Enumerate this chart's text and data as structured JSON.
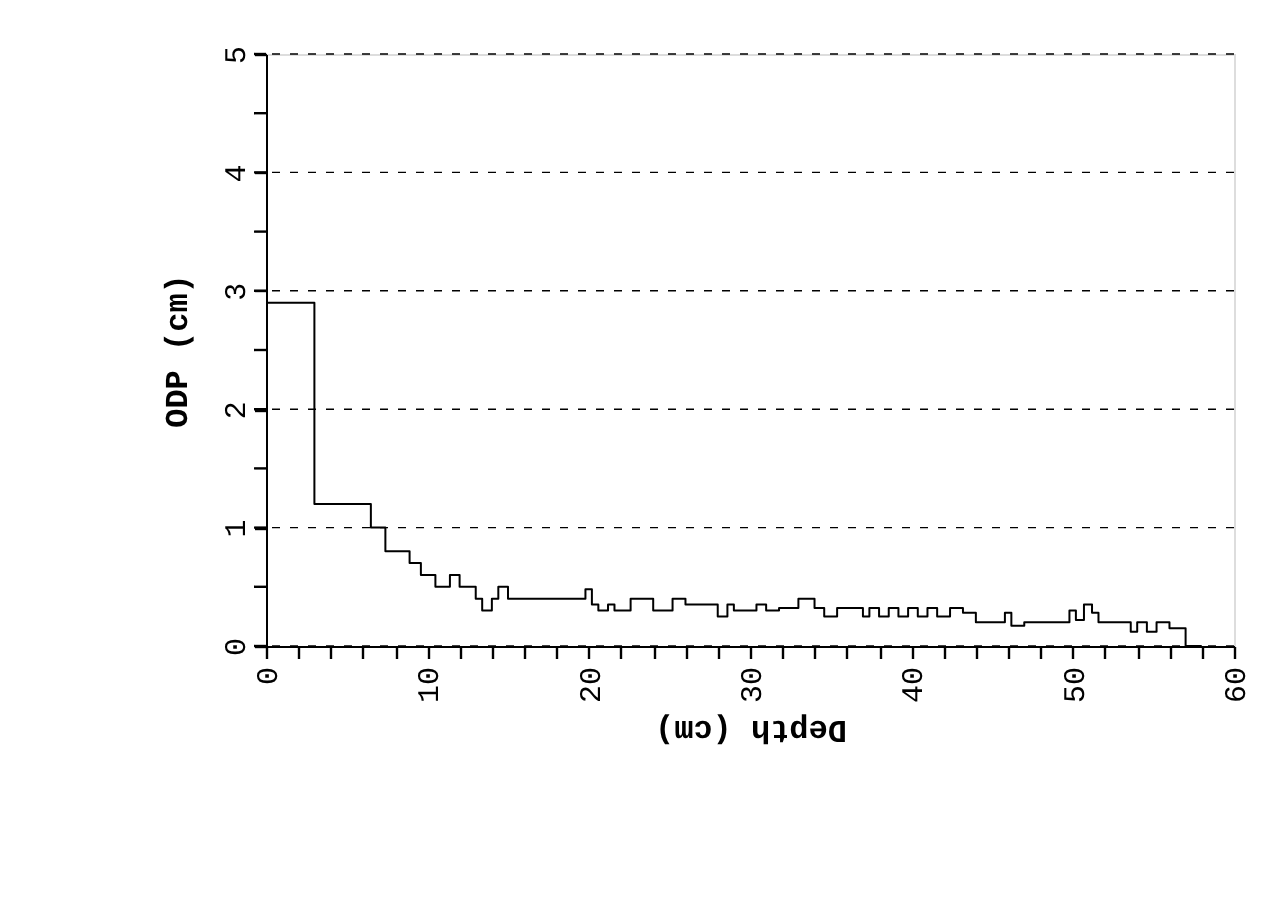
{
  "chart_data": {
    "type": "step",
    "xlabel": "Depth (cm)",
    "ylabel": "ODP (cm)",
    "x": [
      0,
      3,
      6.5,
      7.4,
      8.9,
      9.6,
      10.5,
      11.4,
      12,
      13,
      13.4,
      14,
      14.4,
      15,
      19.8,
      20.2,
      20.6,
      21.2,
      21.6,
      22.6,
      24,
      25.2,
      26,
      27,
      28,
      28.6,
      29,
      30.4,
      31,
      31.8,
      33,
      34,
      34.6,
      35.4,
      37,
      37.4,
      38,
      38.6,
      39.2,
      39.8,
      40.4,
      41,
      41.6,
      42.4,
      43.2,
      44,
      45.8,
      46.2,
      47,
      49.8,
      50.2,
      50.7,
      51.2,
      51.6,
      52,
      53.6,
      54,
      54.6,
      55.2,
      56,
      57,
      58
    ],
    "values": [
      2.9,
      1.2,
      1.0,
      0.8,
      0.7,
      0.6,
      0.5,
      0.6,
      0.5,
      0.4,
      0.3,
      0.4,
      0.5,
      0.4,
      0.48,
      0.35,
      0.3,
      0.35,
      0.3,
      0.4,
      0.3,
      0.4,
      0.35,
      0.35,
      0.25,
      0.35,
      0.3,
      0.35,
      0.3,
      0.32,
      0.4,
      0.32,
      0.25,
      0.32,
      0.25,
      0.32,
      0.25,
      0.32,
      0.25,
      0.32,
      0.25,
      0.32,
      0.25,
      0.32,
      0.28,
      0.2,
      0.28,
      0.17,
      0.2,
      0.3,
      0.22,
      0.35,
      0.28,
      0.2,
      0.2,
      0.12,
      0.2,
      0.12,
      0.2,
      0.15,
      0,
      0
    ],
    "color": "#000000",
    "xlim": [
      0,
      60
    ],
    "ylim": [
      0,
      5
    ],
    "xticks": [
      0,
      {
        "value": 2,
        "label": null
      },
      {
        "value": 4,
        "label": null
      },
      {
        "value": 6,
        "label": null
      },
      {
        "value": 8,
        "label": null
      },
      10,
      {
        "value": 12,
        "label": null
      },
      {
        "value": 14,
        "label": null
      },
      {
        "value": 16,
        "label": null
      },
      {
        "value": 18,
        "label": null
      },
      20,
      {
        "value": 22,
        "label": null
      },
      {
        "value": 24,
        "label": null
      },
      {
        "value": 26,
        "label": null
      },
      {
        "value": 28,
        "label": null
      },
      30,
      {
        "value": 32,
        "label": null
      },
      {
        "value": 34,
        "label": null
      },
      {
        "value": 36,
        "label": null
      },
      {
        "value": 38,
        "label": null
      },
      40,
      {
        "value": 42,
        "label": null
      },
      {
        "value": 44,
        "label": null
      },
      {
        "value": 46,
        "label": null
      },
      {
        "value": 48,
        "label": null
      },
      50,
      {
        "value": 52,
        "label": null
      },
      {
        "value": 54,
        "label": null
      },
      {
        "value": 56,
        "label": null
      },
      {
        "value": 58,
        "label": null
      },
      60
    ],
    "yticks": [
      0,
      {
        "value": 0.5,
        "label": null
      },
      1,
      {
        "value": 1.5,
        "label": null
      },
      2,
      {
        "value": 2.5,
        "label": null
      },
      3,
      {
        "value": 3.5,
        "label": null
      },
      4,
      {
        "value": 4.5,
        "label": null
      },
      5
    ],
    "grid": "y",
    "line_style": "solid"
  }
}
